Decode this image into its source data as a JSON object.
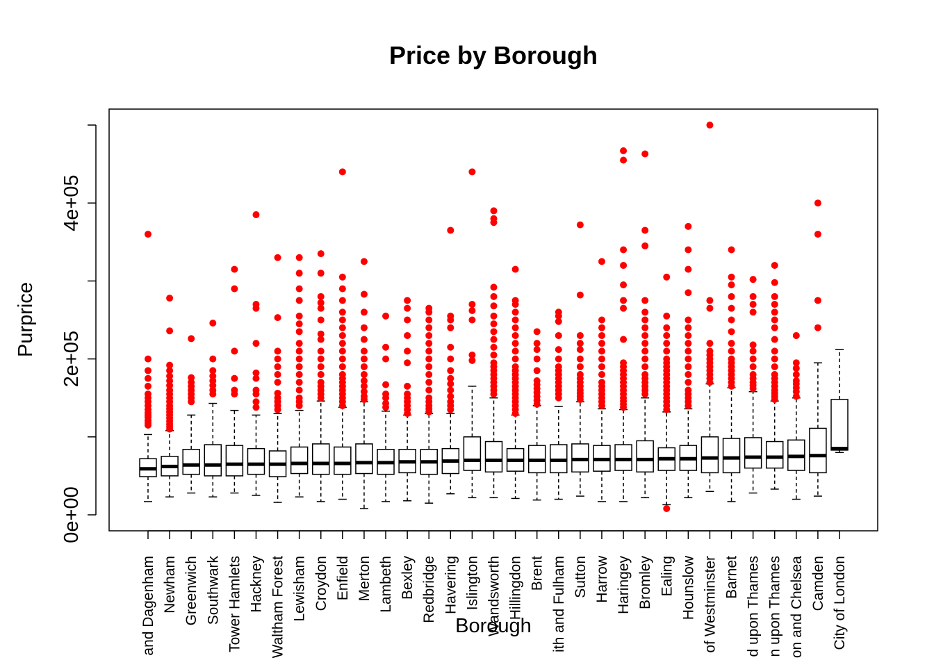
{
  "chart_data": {
    "type": "boxplot",
    "title": "Price by Borough",
    "xlabel": "Borough",
    "ylabel": "Purprice",
    "ylim": [
      0,
      500000
    ],
    "yticks": [
      {
        "value": 0,
        "label": "0e+00"
      },
      {
        "value": 200000,
        "label": "2e+05"
      },
      {
        "value": 400000,
        "label": "4e+05"
      }
    ],
    "colors": {
      "outlier": "#ff0000",
      "box": "#000000",
      "median": "#000000"
    },
    "categories": [
      "and Dagenham",
      "Newham",
      "Greenwich",
      "Southwark",
      "Tower Hamlets",
      "Hackney",
      "Waltham Forest",
      "Lewisham",
      "Croydon",
      "Enfield",
      "Merton",
      "Lambeth",
      "Bexley",
      "Redbridge",
      "Havering",
      "Islington",
      "Wandsworth",
      "Hillingdon",
      "Brent",
      "ith and Fulham",
      "Sutton",
      "Harrow",
      "Haringey",
      "Bromley",
      "Ealing",
      "Hounslow",
      "of Westminster",
      "Barnet",
      "d upon Thames",
      "n upon Thames",
      "on and Chelsea",
      "Camden",
      "City of London"
    ],
    "boxes": [
      {
        "min": 17000,
        "q1": 49000,
        "median": 59000,
        "q3": 72000,
        "max": 103000,
        "outliers": [
          115000,
          118000,
          121000,
          125000,
          128000,
          131000,
          135000,
          140000,
          145000,
          150000,
          155000,
          165000,
          175000,
          185000,
          200000,
          360000
        ]
      },
      {
        "min": 23000,
        "q1": 50000,
        "median": 62000,
        "q3": 75000,
        "max": 108000,
        "outliers": [
          110000,
          113000,
          116000,
          120000,
          124000,
          128000,
          132000,
          136000,
          140000,
          145000,
          150000,
          155000,
          160000,
          166000,
          172000,
          178000,
          185000,
          192000,
          236000,
          278000
        ]
      },
      {
        "min": 28000,
        "q1": 52000,
        "median": 64000,
        "q3": 84000,
        "max": 128000,
        "outliers": [
          145000,
          150000,
          155000,
          160000,
          165000,
          170000,
          176000,
          226000
        ]
      },
      {
        "min": 23000,
        "q1": 50000,
        "median": 64000,
        "q3": 90000,
        "max": 143000,
        "outliers": [
          155000,
          160000,
          166000,
          172000,
          178000,
          185000,
          200000,
          246000
        ]
      },
      {
        "min": 28000,
        "q1": 50000,
        "median": 65000,
        "q3": 89000,
        "max": 134000,
        "outliers": [
          155000,
          160000,
          175000,
          210000,
          290000,
          315000
        ]
      },
      {
        "min": 25000,
        "q1": 52000,
        "median": 65000,
        "q3": 85000,
        "max": 128000,
        "outliers": [
          138000,
          145000,
          155000,
          160000,
          175000,
          182000,
          220000,
          265000,
          270000,
          385000
        ]
      },
      {
        "min": 16000,
        "q1": 49000,
        "median": 65000,
        "q3": 82000,
        "max": 130000,
        "outliers": [
          135000,
          140000,
          145000,
          150000,
          156000,
          170000,
          180000,
          190000,
          200000,
          210000,
          253000,
          330000
        ]
      },
      {
        "min": 23000,
        "q1": 53000,
        "median": 66000,
        "q3": 87000,
        "max": 134000,
        "outliers": [
          140000,
          145000,
          150000,
          160000,
          170000,
          180000,
          190000,
          200000,
          210000,
          220000,
          235000,
          245000,
          255000,
          275000,
          290000,
          310000,
          330000
        ]
      },
      {
        "min": 17000,
        "q1": 52000,
        "median": 66000,
        "q3": 91000,
        "max": 146000,
        "outliers": [
          150000,
          155000,
          160000,
          165000,
          170000,
          180000,
          190000,
          200000,
          210000,
          225000,
          232000,
          250000,
          265000,
          272000,
          280000,
          310000,
          335000
        ]
      },
      {
        "min": 20000,
        "q1": 52000,
        "median": 66000,
        "q3": 87000,
        "max": 138000,
        "outliers": [
          140000,
          145000,
          150000,
          155000,
          160000,
          165000,
          170000,
          175000,
          180000,
          190000,
          200000,
          210000,
          220000,
          230000,
          240000,
          250000,
          260000,
          275000,
          290000,
          305000,
          440000
        ]
      },
      {
        "min": 8000,
        "q1": 53000,
        "median": 67000,
        "q3": 91000,
        "max": 145000,
        "outliers": [
          148000,
          152000,
          158000,
          165000,
          172000,
          180000,
          190000,
          200000,
          210000,
          225000,
          240000,
          260000,
          283000,
          325000
        ]
      },
      {
        "min": 17000,
        "q1": 52000,
        "median": 67000,
        "q3": 84000,
        "max": 133000,
        "outliers": [
          138000,
          143000,
          150000,
          155000,
          167000,
          200000,
          215000,
          255000
        ]
      },
      {
        "min": 18000,
        "q1": 54000,
        "median": 68000,
        "q3": 84000,
        "max": 128000,
        "outliers": [
          130000,
          135000,
          140000,
          145000,
          150000,
          155000,
          165000,
          195000,
          210000,
          230000,
          250000,
          265000,
          275000
        ]
      },
      {
        "min": 15000,
        "q1": 52000,
        "median": 68000,
        "q3": 84000,
        "max": 130000,
        "outliers": [
          132000,
          136000,
          140000,
          145000,
          150000,
          160000,
          170000,
          180000,
          190000,
          200000,
          210000,
          220000,
          230000,
          240000,
          250000,
          260000,
          265000
        ]
      },
      {
        "min": 27000,
        "q1": 53000,
        "median": 69000,
        "q3": 85000,
        "max": 130000,
        "outliers": [
          135000,
          140000,
          145000,
          152000,
          160000,
          168000,
          175000,
          185000,
          200000,
          215000,
          240000,
          250000,
          255000,
          365000
        ]
      },
      {
        "min": 22000,
        "q1": 57000,
        "median": 70000,
        "q3": 100000,
        "max": 165000,
        "outliers": [
          198000,
          205000,
          250000,
          262000,
          270000,
          440000
        ]
      },
      {
        "min": 22000,
        "q1": 55000,
        "median": 70000,
        "q3": 94000,
        "max": 150000,
        "outliers": [
          155000,
          160000,
          165000,
          170000,
          175000,
          180000,
          185000,
          190000,
          195000,
          205000,
          215000,
          225000,
          235000,
          245000,
          255000,
          268000,
          280000,
          292000,
          375000,
          380000,
          390000
        ]
      },
      {
        "min": 21000,
        "q1": 56000,
        "median": 70000,
        "q3": 85000,
        "max": 128000,
        "outliers": [
          130000,
          135000,
          140000,
          145000,
          150000,
          155000,
          160000,
          165000,
          170000,
          175000,
          180000,
          185000,
          190000,
          200000,
          210000,
          220000,
          230000,
          240000,
          250000,
          260000,
          270000,
          275000,
          315000
        ]
      },
      {
        "min": 19000,
        "q1": 54000,
        "median": 70000,
        "q3": 89000,
        "max": 140000,
        "outliers": [
          142000,
          147000,
          152000,
          157000,
          162000,
          167000,
          172000,
          185000,
          200000,
          212000,
          220000,
          235000
        ]
      },
      {
        "min": 20000,
        "q1": 54000,
        "median": 70000,
        "q3": 90000,
        "max": 139000,
        "outliers": [
          150000,
          155000,
          160000,
          165000,
          170000,
          175000,
          180000,
          185000,
          190000,
          200000,
          212000,
          230000,
          248000,
          255000,
          260000
        ]
      },
      {
        "min": 24000,
        "q1": 55000,
        "median": 71000,
        "q3": 91000,
        "max": 145000,
        "outliers": [
          148000,
          152000,
          156000,
          160000,
          165000,
          170000,
          175000,
          180000,
          190000,
          200000,
          212000,
          220000,
          230000,
          282000,
          372000
        ]
      },
      {
        "min": 17000,
        "q1": 56000,
        "median": 71000,
        "q3": 89000,
        "max": 136000,
        "outliers": [
          140000,
          145000,
          150000,
          155000,
          160000,
          165000,
          170000,
          180000,
          190000,
          200000,
          210000,
          220000,
          230000,
          240000,
          250000,
          325000
        ]
      },
      {
        "min": 17000,
        "q1": 57000,
        "median": 71000,
        "q3": 90000,
        "max": 135000,
        "outliers": [
          138000,
          142000,
          146000,
          150000,
          155000,
          160000,
          165000,
          170000,
          175000,
          180000,
          185000,
          190000,
          195000,
          225000,
          265000,
          275000,
          295000,
          320000,
          340000,
          455000,
          467000
        ]
      },
      {
        "min": 22000,
        "q1": 55000,
        "median": 71000,
        "q3": 95000,
        "max": 150000,
        "outliers": [
          155000,
          160000,
          165000,
          170000,
          175000,
          180000,
          190000,
          200000,
          210000,
          220000,
          230000,
          240000,
          250000,
          260000,
          275000,
          345000,
          365000,
          463000
        ]
      },
      {
        "min": 13000,
        "q1": 57000,
        "median": 72000,
        "q3": 86000,
        "max": 132000,
        "outliers": [
          8000,
          135000,
          140000,
          145000,
          150000,
          155000,
          160000,
          165000,
          170000,
          175000,
          180000,
          185000,
          190000,
          195000,
          200000,
          210000,
          220000,
          230000,
          240000,
          255000,
          305000
        ]
      },
      {
        "min": 22000,
        "q1": 57000,
        "median": 72000,
        "q3": 89000,
        "max": 136000,
        "outliers": [
          140000,
          145000,
          150000,
          155000,
          160000,
          170000,
          180000,
          190000,
          200000,
          210000,
          220000,
          230000,
          240000,
          250000,
          285000,
          315000,
          340000,
          370000
        ]
      },
      {
        "min": 30000,
        "q1": 54000,
        "median": 73000,
        "q3": 100000,
        "max": 168000,
        "outliers": [
          170000,
          175000,
          180000,
          185000,
          190000,
          195000,
          200000,
          205000,
          210000,
          220000,
          265000,
          275000,
          500000
        ]
      },
      {
        "min": 17000,
        "q1": 54000,
        "median": 73000,
        "q3": 98000,
        "max": 163000,
        "outliers": [
          165000,
          170000,
          175000,
          180000,
          185000,
          190000,
          195000,
          200000,
          210000,
          220000,
          235000,
          250000,
          265000,
          280000,
          295000,
          305000,
          340000
        ]
      },
      {
        "min": 28000,
        "q1": 60000,
        "median": 74000,
        "q3": 99000,
        "max": 158000,
        "outliers": [
          162000,
          166000,
          170000,
          175000,
          180000,
          190000,
          200000,
          210000,
          218000,
          260000,
          270000,
          280000,
          302000
        ]
      },
      {
        "min": 33000,
        "q1": 60000,
        "median": 74000,
        "q3": 94000,
        "max": 146000,
        "outliers": [
          148000,
          152000,
          156000,
          160000,
          165000,
          170000,
          175000,
          180000,
          190000,
          200000,
          210000,
          225000,
          240000,
          250000,
          260000,
          270000,
          280000,
          298000,
          320000
        ]
      },
      {
        "min": 20000,
        "q1": 57000,
        "median": 75000,
        "q3": 96000,
        "max": 150000,
        "outliers": [
          152000,
          158000,
          163000,
          168000,
          172000,
          180000,
          188000,
          195000,
          230000
        ]
      },
      {
        "min": 24000,
        "q1": 54000,
        "median": 76000,
        "q3": 111000,
        "max": 195000,
        "outliers": [
          240000,
          275000,
          360000,
          400000
        ]
      },
      {
        "min": 80000,
        "q1": 83000,
        "median": 85000,
        "q3": 148000,
        "max": 212000,
        "outliers": []
      }
    ]
  }
}
